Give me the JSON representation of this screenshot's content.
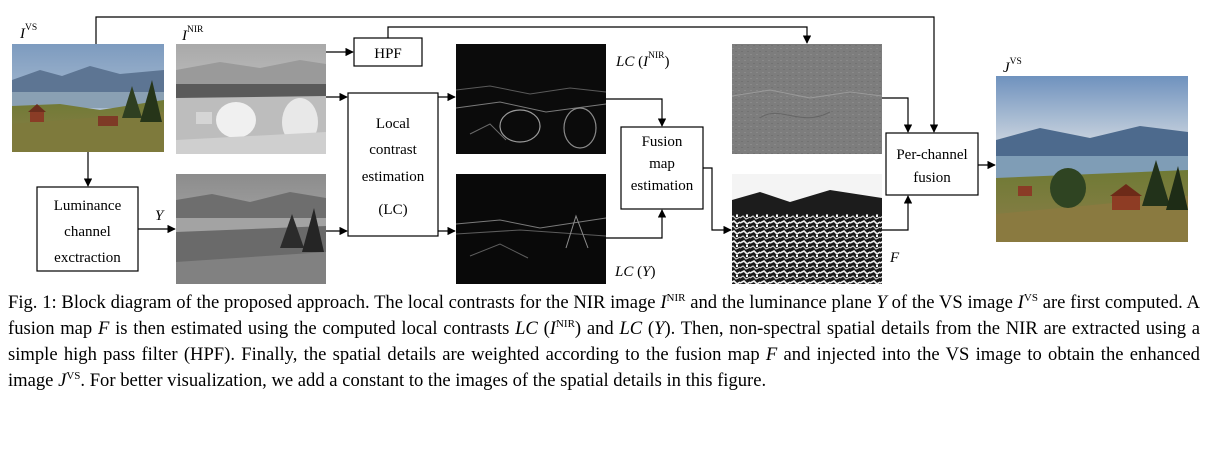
{
  "figure": {
    "inputs": {
      "vs_label": "I",
      "vs_sup": "VS",
      "nir_label": "I",
      "nir_sup": "NIR",
      "y_label": "Y"
    },
    "blocks": {
      "luminance": [
        "Luminance",
        "channel",
        "exctraction"
      ],
      "hpf": "HPF",
      "local_contrast": [
        "Local",
        "contrast",
        "estimation",
        "(LC)"
      ],
      "fusion_map": [
        "Fusion",
        "map",
        "estimation"
      ],
      "per_channel": [
        "Per-channel",
        "fusion"
      ]
    },
    "outputs": {
      "lc_nir_prefix": "LC",
      "lc_nir_arg": "I",
      "lc_nir_sup": "NIR",
      "lc_y_prefix": "LC",
      "lc_y_arg": "Y",
      "fusion_map_label": "F",
      "result_label": "J",
      "result_sup": "VS"
    },
    "caption": {
      "fig": "Fig. 1:",
      "s1": "Block diagram of the proposed approach. The local contrasts for the NIR image",
      "m1": "I",
      "m1sup": "NIR",
      "s2": "and the luminance plane",
      "m2": "Y",
      "s3": "of the VS image",
      "m3": "I",
      "m3sup": "VS",
      "s4": "are first computed. A fusion map",
      "m4": "F",
      "s5": "is then estimated using the computed local contrasts",
      "m5": "LC",
      "m5arg": "I",
      "m5sup": "NIR",
      "s6": "and",
      "m6": "LC",
      "m6arg": "Y",
      "s7": ". Then, non-spectral spatial details from the NIR are extracted using a simple high pass filter (HPF). Finally, the spatial details are weighted according to the fusion map",
      "m7": "F",
      "s8": "and injected into the VS image to obtain the enhanced image",
      "m8": "J",
      "m8sup": "VS",
      "s9": ". For better visualization, we add a constant to the images of the spatial details in this figure."
    },
    "colors": {
      "sky": "#8fa9c6",
      "mountain": "#566f8d",
      "lake": "#7f95a8",
      "grass": "#6b6a30",
      "tree": "#2e3f1f",
      "roof": "#8a3c26"
    }
  }
}
